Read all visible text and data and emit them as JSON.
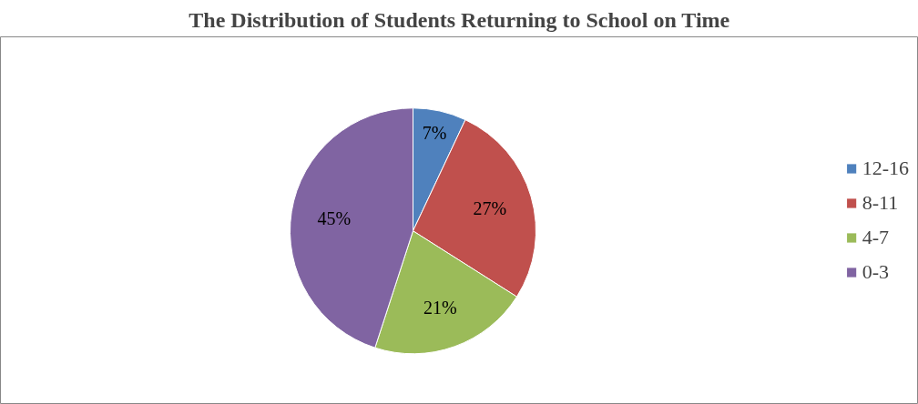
{
  "chart_data": {
    "type": "pie",
    "title": "The Distribution of Students Returning to School on Time",
    "categories": [
      "12-16",
      "8-11",
      "4-7",
      "0-3"
    ],
    "values": [
      7,
      27,
      21,
      45
    ],
    "colors": [
      "#4f81bd",
      "#c0504d",
      "#9bbb59",
      "#8064a2"
    ],
    "value_labels": [
      "7%",
      "27%",
      "21%",
      "45%"
    ],
    "legend": "right"
  }
}
